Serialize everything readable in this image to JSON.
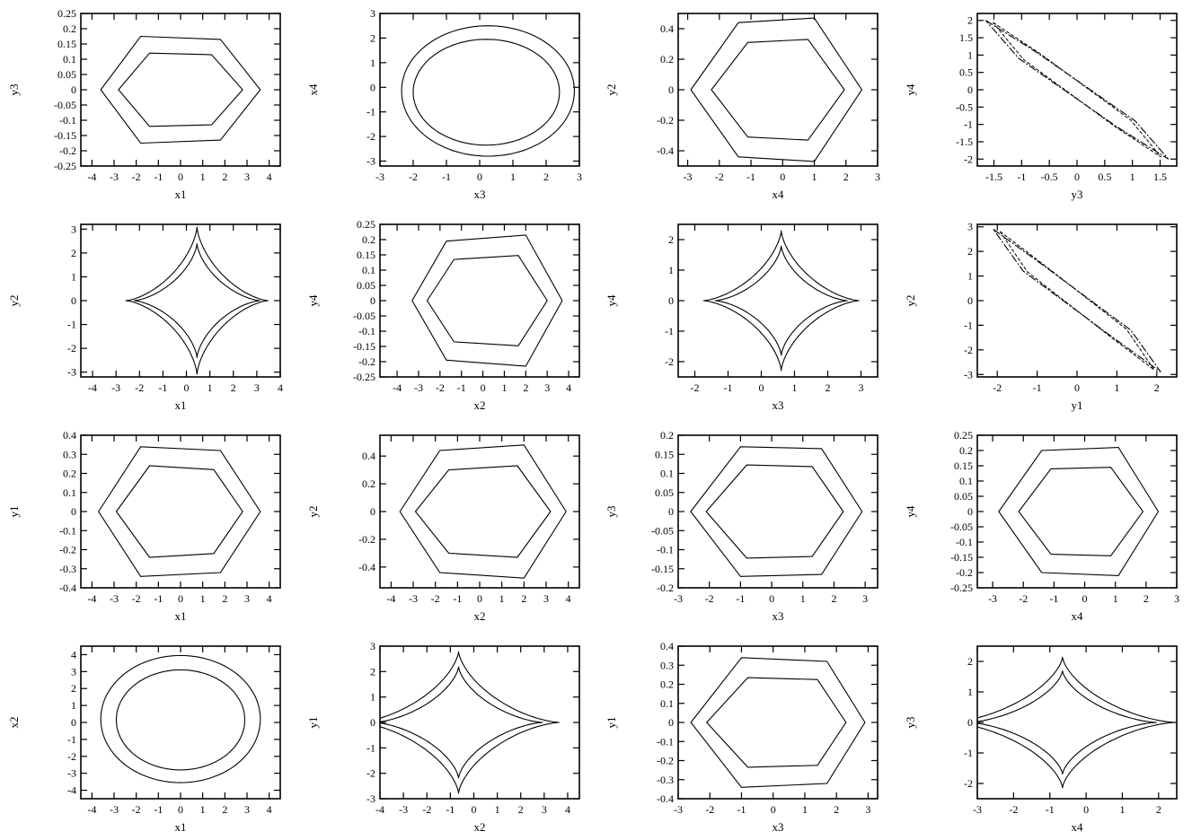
{
  "chart_data": [
    {
      "type": "line",
      "xlabel": "x1",
      "ylabel": "y3",
      "xlim": [
        -4.5,
        4.5
      ],
      "ylim": [
        -0.25,
        0.25
      ],
      "xticks": [
        -4,
        -3,
        -2,
        -1,
        0,
        1,
        2,
        3,
        4
      ],
      "yticks": [
        -0.25,
        -0.2,
        -0.15,
        -0.1,
        -0.05,
        0,
        0.05,
        0.1,
        0.15,
        0.2,
        0.25
      ],
      "series": [
        {
          "shape": "hexagon",
          "x": [
            -3.6,
            -1.8,
            1.8,
            3.6,
            1.8,
            -1.8
          ],
          "y": [
            0,
            0.175,
            0.165,
            0,
            -0.165,
            -0.175
          ]
        },
        {
          "shape": "hexagon",
          "x": [
            -2.8,
            -1.4,
            1.4,
            2.8,
            1.4,
            -1.4
          ],
          "y": [
            0,
            0.12,
            0.115,
            0,
            -0.115,
            -0.12
          ]
        }
      ]
    },
    {
      "type": "line",
      "xlabel": "x3",
      "ylabel": "x4",
      "xlim": [
        -3,
        3
      ],
      "ylim": [
        -3.2,
        3
      ],
      "xticks": [
        -3,
        -2,
        -1,
        0,
        1,
        2,
        3
      ],
      "yticks": [
        -3,
        -2,
        -1,
        0,
        1,
        2,
        3
      ],
      "series": [
        {
          "shape": "ellipse",
          "cx": 0.25,
          "cy": -0.15,
          "rx": 2.6,
          "ry": 2.65
        },
        {
          "shape": "ellipse",
          "cx": 0.2,
          "cy": -0.2,
          "rx": 2.2,
          "ry": 2.15
        }
      ]
    },
    {
      "type": "line",
      "xlabel": "x4",
      "ylabel": "y2",
      "xlim": [
        -3.3,
        3
      ],
      "ylim": [
        -0.5,
        0.5
      ],
      "xticks": [
        -3,
        -2,
        -1,
        0,
        1,
        2,
        3
      ],
      "yticks": [
        -0.4,
        -0.2,
        0,
        0.2,
        0.4
      ],
      "series": [
        {
          "shape": "hexagon",
          "x": [
            -2.9,
            -1.4,
            1.0,
            2.5,
            1.0,
            -1.4
          ],
          "y": [
            0,
            0.44,
            0.47,
            0,
            -0.47,
            -0.44
          ]
        },
        {
          "shape": "hexagon",
          "x": [
            -2.25,
            -1.1,
            0.8,
            1.95,
            0.8,
            -1.1
          ],
          "y": [
            0,
            0.31,
            0.33,
            0,
            -0.33,
            -0.31
          ]
        }
      ]
    },
    {
      "type": "line",
      "xlabel": "y3",
      "ylabel": "y4",
      "xlim": [
        -1.8,
        1.8
      ],
      "ylim": [
        -2.2,
        2.2
      ],
      "xticks": [
        -1.5,
        -1,
        -0.5,
        0,
        0.5,
        1,
        1.5
      ],
      "yticks": [
        -2,
        -1.5,
        -1,
        -0.5,
        0,
        0.5,
        1,
        1.5,
        2
      ],
      "series": [
        {
          "shape": "lens",
          "x": [
            -1.65,
            -0.75,
            1.05,
            1.65,
            0.75,
            -1.05
          ],
          "y": [
            2.0,
            1.1,
            -0.9,
            -2.0,
            -1.1,
            0.9
          ]
        }
      ]
    },
    {
      "type": "line",
      "xlabel": "x1",
      "ylabel": "y2",
      "xlim": [
        -4.5,
        4
      ],
      "ylim": [
        -3.2,
        3.2
      ],
      "xticks": [
        -4,
        -3,
        -2,
        -1,
        0,
        1,
        2,
        3,
        4
      ],
      "yticks": [
        -3,
        -2,
        -1,
        0,
        1,
        2,
        3
      ],
      "series": [
        {
          "shape": "astroid",
          "cx": 0.45,
          "cy": 0,
          "rx": 3.05,
          "ry": 3.1
        },
        {
          "shape": "astroid",
          "cx": 0.45,
          "cy": 0,
          "rx": 2.7,
          "ry": 2.4
        }
      ]
    },
    {
      "type": "line",
      "xlabel": "x2",
      "ylabel": "y4",
      "xlim": [
        -4.8,
        4.5
      ],
      "ylim": [
        -0.25,
        0.25
      ],
      "xticks": [
        -4,
        -3,
        -2,
        -1,
        0,
        1,
        2,
        3,
        4
      ],
      "yticks": [
        -0.25,
        -0.2,
        -0.15,
        -0.1,
        -0.05,
        0,
        0.05,
        0.1,
        0.15,
        0.2,
        0.25
      ],
      "series": [
        {
          "shape": "hexagon",
          "x": [
            -3.3,
            -1.7,
            2.0,
            3.7,
            2.0,
            -1.7
          ],
          "y": [
            0,
            0.195,
            0.215,
            0,
            -0.215,
            -0.195
          ]
        },
        {
          "shape": "hexagon",
          "x": [
            -2.6,
            -1.35,
            1.65,
            3.0,
            1.65,
            -1.35
          ],
          "y": [
            0,
            0.135,
            0.148,
            0,
            -0.148,
            -0.135
          ]
        }
      ]
    },
    {
      "type": "line",
      "xlabel": "x3",
      "ylabel": "y4",
      "xlim": [
        -2.5,
        3.5
      ],
      "ylim": [
        -2.5,
        2.5
      ],
      "xticks": [
        -2,
        -1,
        0,
        1,
        2,
        3
      ],
      "yticks": [
        -2,
        -1,
        0,
        1,
        2
      ],
      "series": [
        {
          "shape": "astroid",
          "cx": 0.6,
          "cy": 0,
          "rx": 2.35,
          "ry": 2.3
        },
        {
          "shape": "astroid",
          "cx": 0.6,
          "cy": 0,
          "rx": 2.0,
          "ry": 1.8
        }
      ]
    },
    {
      "type": "line",
      "xlabel": "y1",
      "ylabel": "y2",
      "xlim": [
        -2.5,
        2.5
      ],
      "ylim": [
        -3.1,
        3.1
      ],
      "xticks": [
        -2,
        -1,
        0,
        1,
        2
      ],
      "yticks": [
        -3,
        -2,
        -1,
        0,
        1,
        2,
        3
      ],
      "series": [
        {
          "shape": "lens",
          "x": [
            -2.1,
            -0.9,
            1.35,
            2.1,
            0.9,
            -1.35
          ],
          "y": [
            2.9,
            1.5,
            -1.2,
            -2.9,
            -1.5,
            1.2
          ]
        }
      ]
    },
    {
      "type": "line",
      "xlabel": "x1",
      "ylabel": "y1",
      "xlim": [
        -4.5,
        4.5
      ],
      "ylim": [
        -0.4,
        0.4
      ],
      "xticks": [
        -4,
        -3,
        -2,
        -1,
        0,
        1,
        2,
        3,
        4
      ],
      "yticks": [
        -0.4,
        -0.3,
        -0.2,
        -0.1,
        0,
        0.1,
        0.2,
        0.3,
        0.4
      ],
      "series": [
        {
          "shape": "hexagon",
          "x": [
            -3.7,
            -1.8,
            1.8,
            3.6,
            1.8,
            -1.8
          ],
          "y": [
            0,
            0.34,
            0.32,
            0,
            -0.32,
            -0.34
          ]
        },
        {
          "shape": "hexagon",
          "x": [
            -2.9,
            -1.4,
            1.5,
            2.8,
            1.5,
            -1.4
          ],
          "y": [
            0,
            0.24,
            0.22,
            0,
            -0.22,
            -0.24
          ]
        }
      ]
    },
    {
      "type": "line",
      "xlabel": "x2",
      "ylabel": "y2",
      "xlim": [
        -4.5,
        4.5
      ],
      "ylim": [
        -0.55,
        0.55
      ],
      "xticks": [
        -4,
        -3,
        -2,
        -1,
        0,
        1,
        2,
        3,
        4
      ],
      "yticks": [
        -0.4,
        -0.2,
        0,
        0.2,
        0.4
      ],
      "series": [
        {
          "shape": "hexagon",
          "x": [
            -3.6,
            -1.8,
            2.0,
            3.9,
            2.0,
            -1.8
          ],
          "y": [
            0,
            0.44,
            0.48,
            0,
            -0.48,
            -0.44
          ]
        },
        {
          "shape": "hexagon",
          "x": [
            -2.9,
            -1.4,
            1.7,
            3.2,
            1.7,
            -1.4
          ],
          "y": [
            0,
            0.3,
            0.33,
            0,
            -0.33,
            -0.3
          ]
        }
      ]
    },
    {
      "type": "line",
      "xlabel": "x3",
      "ylabel": "y3",
      "xlim": [
        -3,
        3.4
      ],
      "ylim": [
        -0.2,
        0.2
      ],
      "xticks": [
        -3,
        -2,
        -1,
        0,
        1,
        2,
        3
      ],
      "yticks": [
        -0.2,
        -0.15,
        -0.1,
        -0.05,
        0,
        0.05,
        0.1,
        0.15,
        0.2
      ],
      "series": [
        {
          "shape": "hexagon",
          "x": [
            -2.6,
            -1.0,
            1.6,
            2.9,
            1.6,
            -1.0
          ],
          "y": [
            0,
            0.17,
            0.165,
            0,
            -0.165,
            -0.17
          ]
        },
        {
          "shape": "hexagon",
          "x": [
            -2.1,
            -0.8,
            1.3,
            2.3,
            1.3,
            -0.8
          ],
          "y": [
            0,
            0.122,
            0.118,
            0,
            -0.118,
            -0.122
          ]
        }
      ]
    },
    {
      "type": "line",
      "xlabel": "x4",
      "ylabel": "y4",
      "xlim": [
        -3.5,
        3
      ],
      "ylim": [
        -0.25,
        0.25
      ],
      "xticks": [
        -3,
        -2,
        -1,
        0,
        1,
        2,
        3
      ],
      "yticks": [
        -0.25,
        -0.2,
        -0.15,
        -0.1,
        -0.05,
        0,
        0.05,
        0.1,
        0.15,
        0.2,
        0.25
      ],
      "series": [
        {
          "shape": "hexagon",
          "x": [
            -2.8,
            -1.4,
            1.1,
            2.4,
            1.1,
            -1.4
          ],
          "y": [
            0,
            0.2,
            0.21,
            0,
            -0.21,
            -0.2
          ]
        },
        {
          "shape": "hexagon",
          "x": [
            -2.15,
            -1.1,
            0.85,
            1.9,
            0.85,
            -1.1
          ],
          "y": [
            0,
            0.14,
            0.145,
            0,
            -0.145,
            -0.14
          ]
        }
      ]
    },
    {
      "type": "line",
      "xlabel": "x1",
      "ylabel": "x2",
      "xlim": [
        -4.5,
        4.5
      ],
      "ylim": [
        -4.5,
        4.5
      ],
      "xticks": [
        -4,
        -3,
        -2,
        -1,
        0,
        1,
        2,
        3,
        4
      ],
      "yticks": [
        -4,
        -3,
        -2,
        -1,
        0,
        1,
        2,
        3,
        4
      ],
      "series": [
        {
          "shape": "ellipse",
          "cx": 0,
          "cy": 0.2,
          "rx": 3.6,
          "ry": 3.75
        },
        {
          "shape": "ellipse",
          "cx": 0,
          "cy": 0.15,
          "rx": 2.9,
          "ry": 2.95
        }
      ]
    },
    {
      "type": "line",
      "xlabel": "x2",
      "ylabel": "y1",
      "xlim": [
        -4,
        4.5
      ],
      "ylim": [
        -3,
        3
      ],
      "xticks": [
        -4,
        -3,
        -2,
        -1,
        0,
        1,
        2,
        3,
        4
      ],
      "yticks": [
        -3,
        -2,
        -1,
        0,
        1,
        2,
        3
      ],
      "series": [
        {
          "shape": "astroid",
          "cx": -0.65,
          "cy": 0,
          "rx": 4.3,
          "ry": 2.8
        },
        {
          "shape": "astroid",
          "cx": -0.65,
          "cy": 0,
          "rx": 3.6,
          "ry": 2.2
        }
      ]
    },
    {
      "type": "line",
      "xlabel": "x3",
      "ylabel": "y1",
      "xlim": [
        -3,
        3.3
      ],
      "ylim": [
        -0.4,
        0.4
      ],
      "xticks": [
        -3,
        -2,
        -1,
        0,
        1,
        2,
        3
      ],
      "yticks": [
        -0.4,
        -0.3,
        -0.2,
        -0.1,
        0,
        0.1,
        0.2,
        0.3,
        0.4
      ],
      "series": [
        {
          "shape": "hexagon",
          "x": [
            -2.6,
            -1.0,
            1.7,
            2.9,
            1.7,
            -1.0
          ],
          "y": [
            0,
            0.34,
            0.32,
            0,
            -0.32,
            -0.34
          ]
        },
        {
          "shape": "hexagon",
          "x": [
            -2.1,
            -0.8,
            1.4,
            2.3,
            1.4,
            -0.8
          ],
          "y": [
            0,
            0.235,
            0.225,
            0,
            -0.225,
            -0.235
          ]
        }
      ]
    },
    {
      "type": "line",
      "xlabel": "x4",
      "ylabel": "y3",
      "xlim": [
        -3,
        2.5
      ],
      "ylim": [
        -2.5,
        2.5
      ],
      "xticks": [
        -3,
        -2,
        -1,
        0,
        1,
        2
      ],
      "yticks": [
        -2,
        -1,
        0,
        1,
        2
      ],
      "series": [
        {
          "shape": "astroid",
          "cx": -0.65,
          "cy": 0,
          "rx": 3.1,
          "ry": 2.15
        },
        {
          "shape": "astroid",
          "cx": -0.65,
          "cy": 0,
          "rx": 2.6,
          "ry": 1.7
        }
      ]
    }
  ]
}
